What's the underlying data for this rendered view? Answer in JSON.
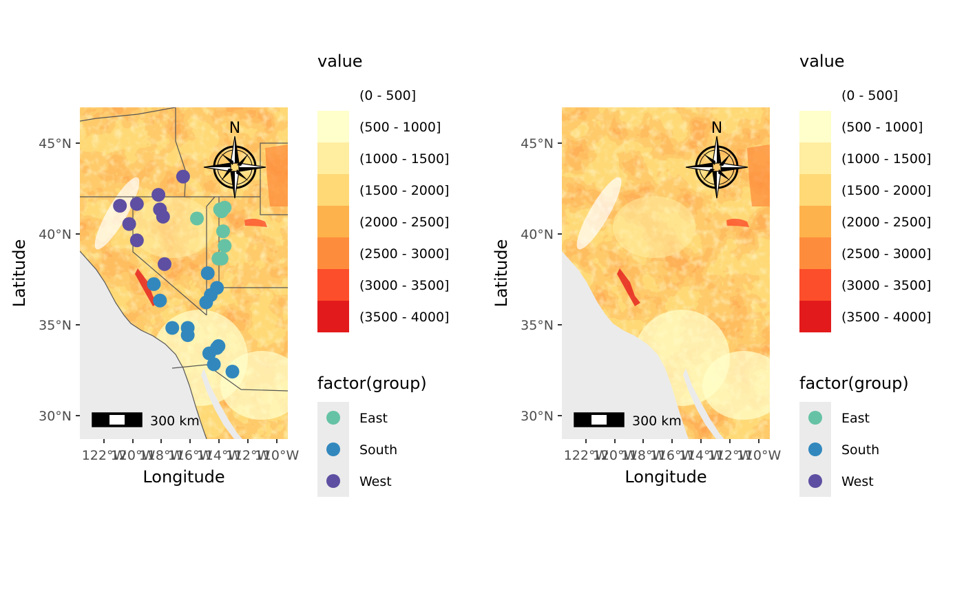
{
  "colors": {
    "raster_bins": [
      "#ffffff",
      "#ffffcc",
      "#ffeda0",
      "#fed976",
      "#feb24c",
      "#fd8d3c",
      "#fc4e2a",
      "#e31a1c"
    ],
    "groups": {
      "East": "#66c2a5",
      "South": "#3288bd",
      "West": "#5e4fa2"
    },
    "ocean": "#ebebeb",
    "borders": "#555555"
  },
  "panels": [
    {
      "x_axis_title": "Longitude",
      "y_axis_title": "Latitude",
      "y_ticks": [
        "45°N",
        "40°N",
        "35°N",
        "30°N"
      ],
      "x_ticks": [
        "122°W",
        "120°W",
        "118°W",
        "116°W",
        "114°W",
        "112°W",
        "110°W"
      ],
      "north_arrow_label": "N",
      "scale_bar_label": "300 km",
      "legend_value_title": "value",
      "legend_value_items": [
        "(0 - 500]",
        "(500 - 1000]",
        "(1000 - 1500]",
        "(1500 - 2000]",
        "(2000 - 2500]",
        "(2500 - 3000]",
        "(3000 - 3500]",
        "(3500 - 4000]"
      ],
      "legend_group_title": "factor(group)",
      "legend_group_items": [
        "East",
        "South",
        "West"
      ]
    },
    {
      "x_axis_title": "Longitude",
      "y_axis_title": "Latitude",
      "y_ticks": [
        "45°N",
        "40°N",
        "35°N",
        "30°N"
      ],
      "x_ticks": [
        "122°W",
        "120°W",
        "118°W",
        "116°W",
        "114°W",
        "112°W",
        "110°W"
      ],
      "north_arrow_label": "N",
      "scale_bar_label": "300 km",
      "legend_value_title": "value",
      "legend_value_items": [
        "(0 - 500]",
        "(500 - 1000]",
        "(1000 - 1500]",
        "(1500 - 2000]",
        "(2000 - 2500]",
        "(2500 - 3000]",
        "(3000 - 3500]",
        "(3500 - 4000]"
      ],
      "legend_group_title": "factor(group)",
      "legend_group_items": [
        "East",
        "South",
        "West"
      ]
    }
  ],
  "chart_data": {
    "type": "scatter",
    "xlim": [
      -123.0,
      -109.5
    ],
    "ylim": [
      28.8,
      47.0
    ],
    "series": [
      {
        "name": "East",
        "points": [
          [
            -115.4,
            40.9
          ],
          [
            -113.9,
            41.4
          ],
          [
            -113.6,
            41.5
          ],
          [
            -113.8,
            41.3
          ],
          [
            -113.7,
            40.2
          ],
          [
            -113.6,
            39.4
          ],
          [
            -114.0,
            38.7
          ],
          [
            -113.8,
            38.7
          ]
        ]
      },
      {
        "name": "South",
        "points": [
          [
            -114.7,
            37.9
          ],
          [
            -118.2,
            37.3
          ],
          [
            -117.8,
            36.4
          ],
          [
            -114.5,
            36.7
          ],
          [
            -114.8,
            36.3
          ],
          [
            -114.1,
            37.1
          ],
          [
            -116.0,
            34.9
          ],
          [
            -117.0,
            34.9
          ],
          [
            -116.0,
            34.5
          ],
          [
            -114.0,
            33.9
          ],
          [
            -114.1,
            33.8
          ],
          [
            -114.6,
            33.5
          ],
          [
            -114.3,
            32.9
          ],
          [
            -113.1,
            32.5
          ]
        ]
      },
      {
        "name": "West",
        "points": [
          [
            -116.3,
            43.2
          ],
          [
            -117.9,
            42.2
          ],
          [
            -120.4,
            41.6
          ],
          [
            -119.3,
            41.7
          ],
          [
            -117.8,
            41.4
          ],
          [
            -117.6,
            41.0
          ],
          [
            -119.8,
            40.6
          ],
          [
            -119.3,
            39.7
          ],
          [
            -117.5,
            38.4
          ]
        ]
      }
    ]
  }
}
